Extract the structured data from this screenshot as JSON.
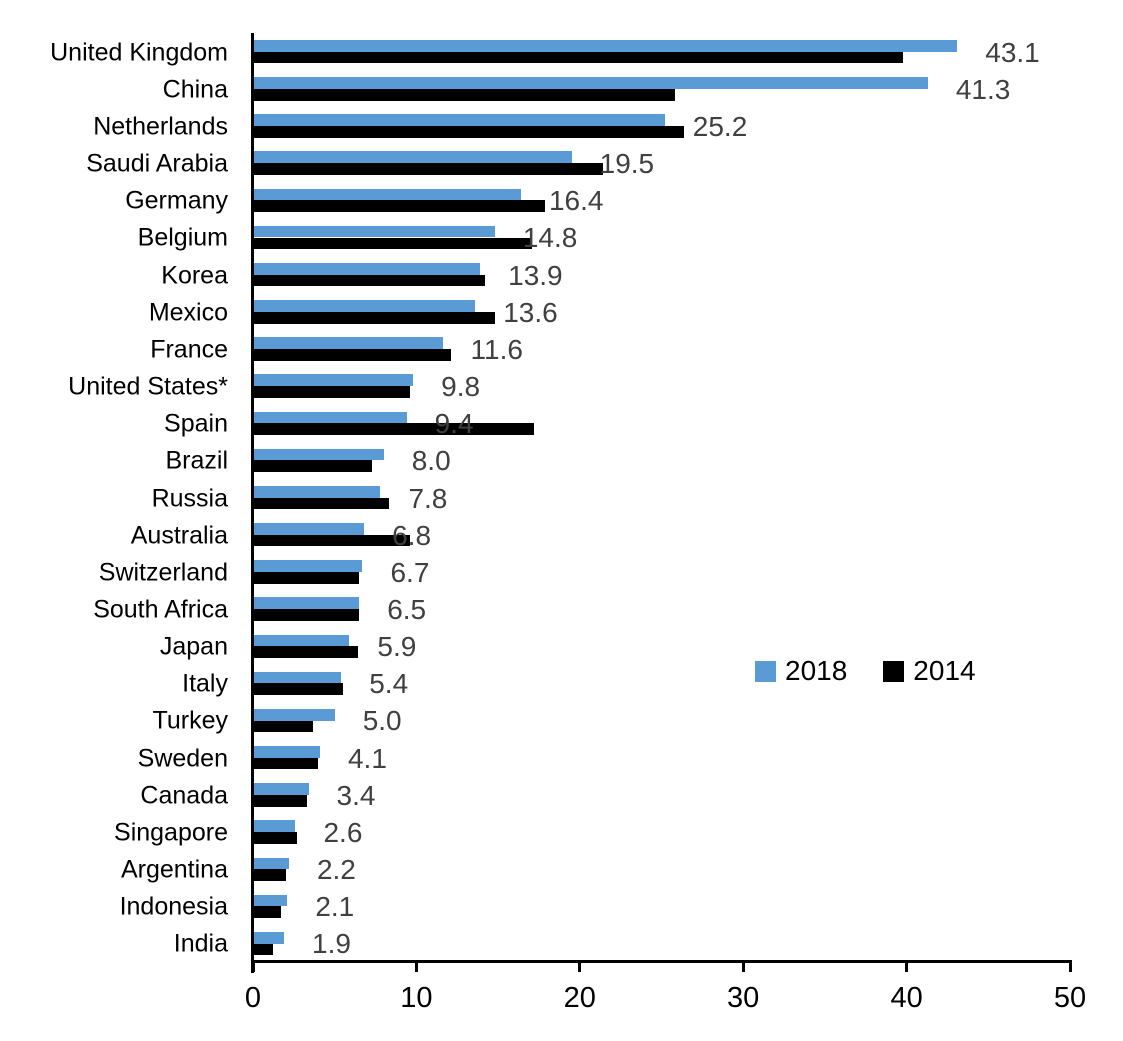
{
  "chart_data": {
    "type": "bar",
    "orientation": "horizontal",
    "title": "",
    "xlabel": "",
    "ylabel": "",
    "xlim": [
      0,
      50
    ],
    "x_ticks": [
      0,
      10,
      20,
      30,
      40,
      50
    ],
    "grid": false,
    "legend_position": "middle-right",
    "categories": [
      "United Kingdom",
      "China",
      "Netherlands",
      "Saudi Arabia",
      "Germany",
      "Belgium",
      "Korea",
      "Mexico",
      "France",
      "United States*",
      "Spain",
      "Brazil",
      "Russia",
      "Australia",
      "Switzerland",
      "South Africa",
      "Japan",
      "Italy",
      "Turkey",
      "Sweden",
      "Canada",
      "Singapore",
      "Argentina",
      "Indonesia",
      "India"
    ],
    "series": [
      {
        "name": "2018",
        "color": "#5B9BD5",
        "values": [
          43.1,
          41.3,
          25.2,
          19.5,
          16.4,
          14.8,
          13.9,
          13.6,
          11.6,
          9.8,
          9.4,
          8.0,
          7.8,
          6.8,
          6.7,
          6.5,
          5.9,
          5.4,
          5.0,
          4.1,
          3.4,
          2.6,
          2.2,
          2.1,
          1.9
        ]
      },
      {
        "name": "2014",
        "color": "#000000",
        "values": [
          39.8,
          25.8,
          26.4,
          21.4,
          17.9,
          17.1,
          14.2,
          14.8,
          12.1,
          9.6,
          17.2,
          7.3,
          8.3,
          9.6,
          6.5,
          6.5,
          6.4,
          5.5,
          3.7,
          4.0,
          3.3,
          2.7,
          2.0,
          1.7,
          1.2
        ]
      }
    ],
    "value_labels": [
      "43.1",
      "41.3",
      "25.2",
      "19.5",
      "16.4",
      "14.8",
      "13.9",
      "13.6",
      "11.6",
      "9.8",
      "9.4",
      "8.0",
      "7.8",
      "6.8",
      "6.7",
      "6.5",
      "5.9",
      "5.4",
      "5.0",
      "4.1",
      "3.4",
      "2.6",
      "2.2",
      "2.1",
      "1.9"
    ],
    "value_label_color": "#404040",
    "axis_color": "#000000",
    "tick_labels": [
      "0",
      "10",
      "20",
      "30",
      "40",
      "50"
    ]
  },
  "legend": {
    "items": [
      {
        "label": "2018",
        "color": "#5B9BD5"
      },
      {
        "label": "2014",
        "color": "#000000"
      }
    ]
  }
}
